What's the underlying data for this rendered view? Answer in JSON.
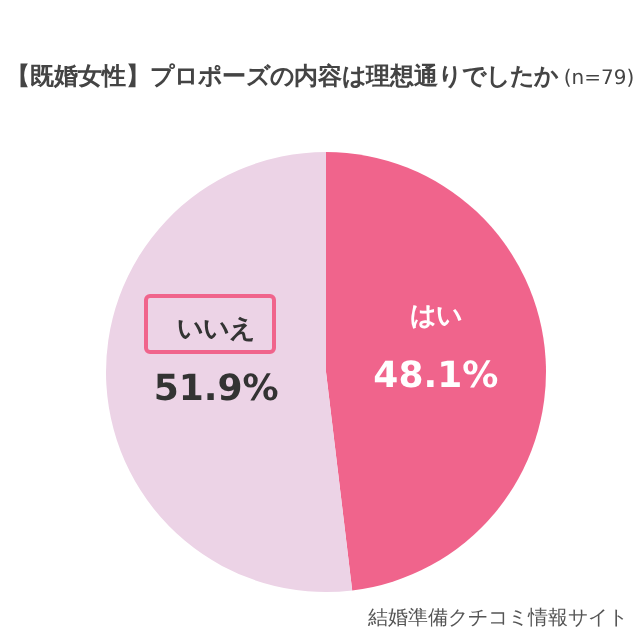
{
  "chart_data": {
    "type": "pie",
    "title": "【既婚女性】プロポーズの内容は理想通りでしたか",
    "subtitle": "(n=79)",
    "categories": [
      "はい",
      "いいえ"
    ],
    "values": [
      48.1,
      51.9
    ],
    "colors": [
      "#f0648c",
      "#ecd3e6"
    ],
    "value_labels": [
      "48.1%",
      "51.9%"
    ],
    "legend": false,
    "annotations": [
      "結婚準備クチコミ情報サイト"
    ]
  }
}
